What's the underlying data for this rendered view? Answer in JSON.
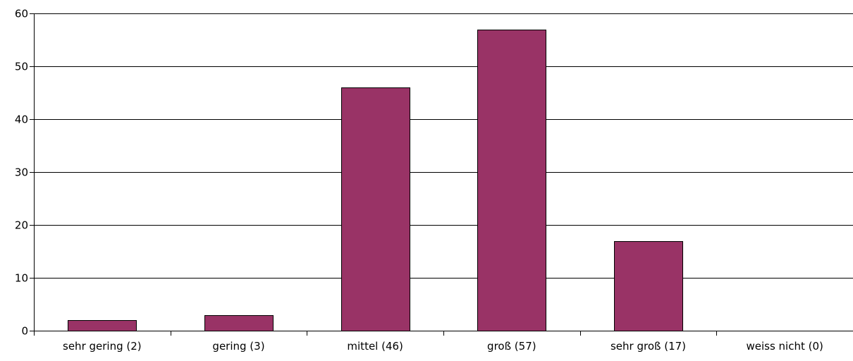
{
  "chart_data": {
    "type": "bar",
    "categories": [
      "sehr gering (2)",
      "gering (3)",
      "mittel (46)",
      "groß (57)",
      "sehr groß (17)",
      "weiss nicht (0)"
    ],
    "values": [
      2,
      3,
      46,
      57,
      17,
      0
    ],
    "title": "",
    "xlabel": "",
    "ylabel": "",
    "ylim": [
      0,
      60
    ],
    "yticks": [
      "0",
      "10",
      "20",
      "30",
      "40",
      "50",
      "60"
    ],
    "grid": true,
    "legend": "none",
    "colors": {
      "bar": "#993366",
      "bar_outline": "#000000",
      "grid": "#000000",
      "axis": "#000000"
    }
  }
}
